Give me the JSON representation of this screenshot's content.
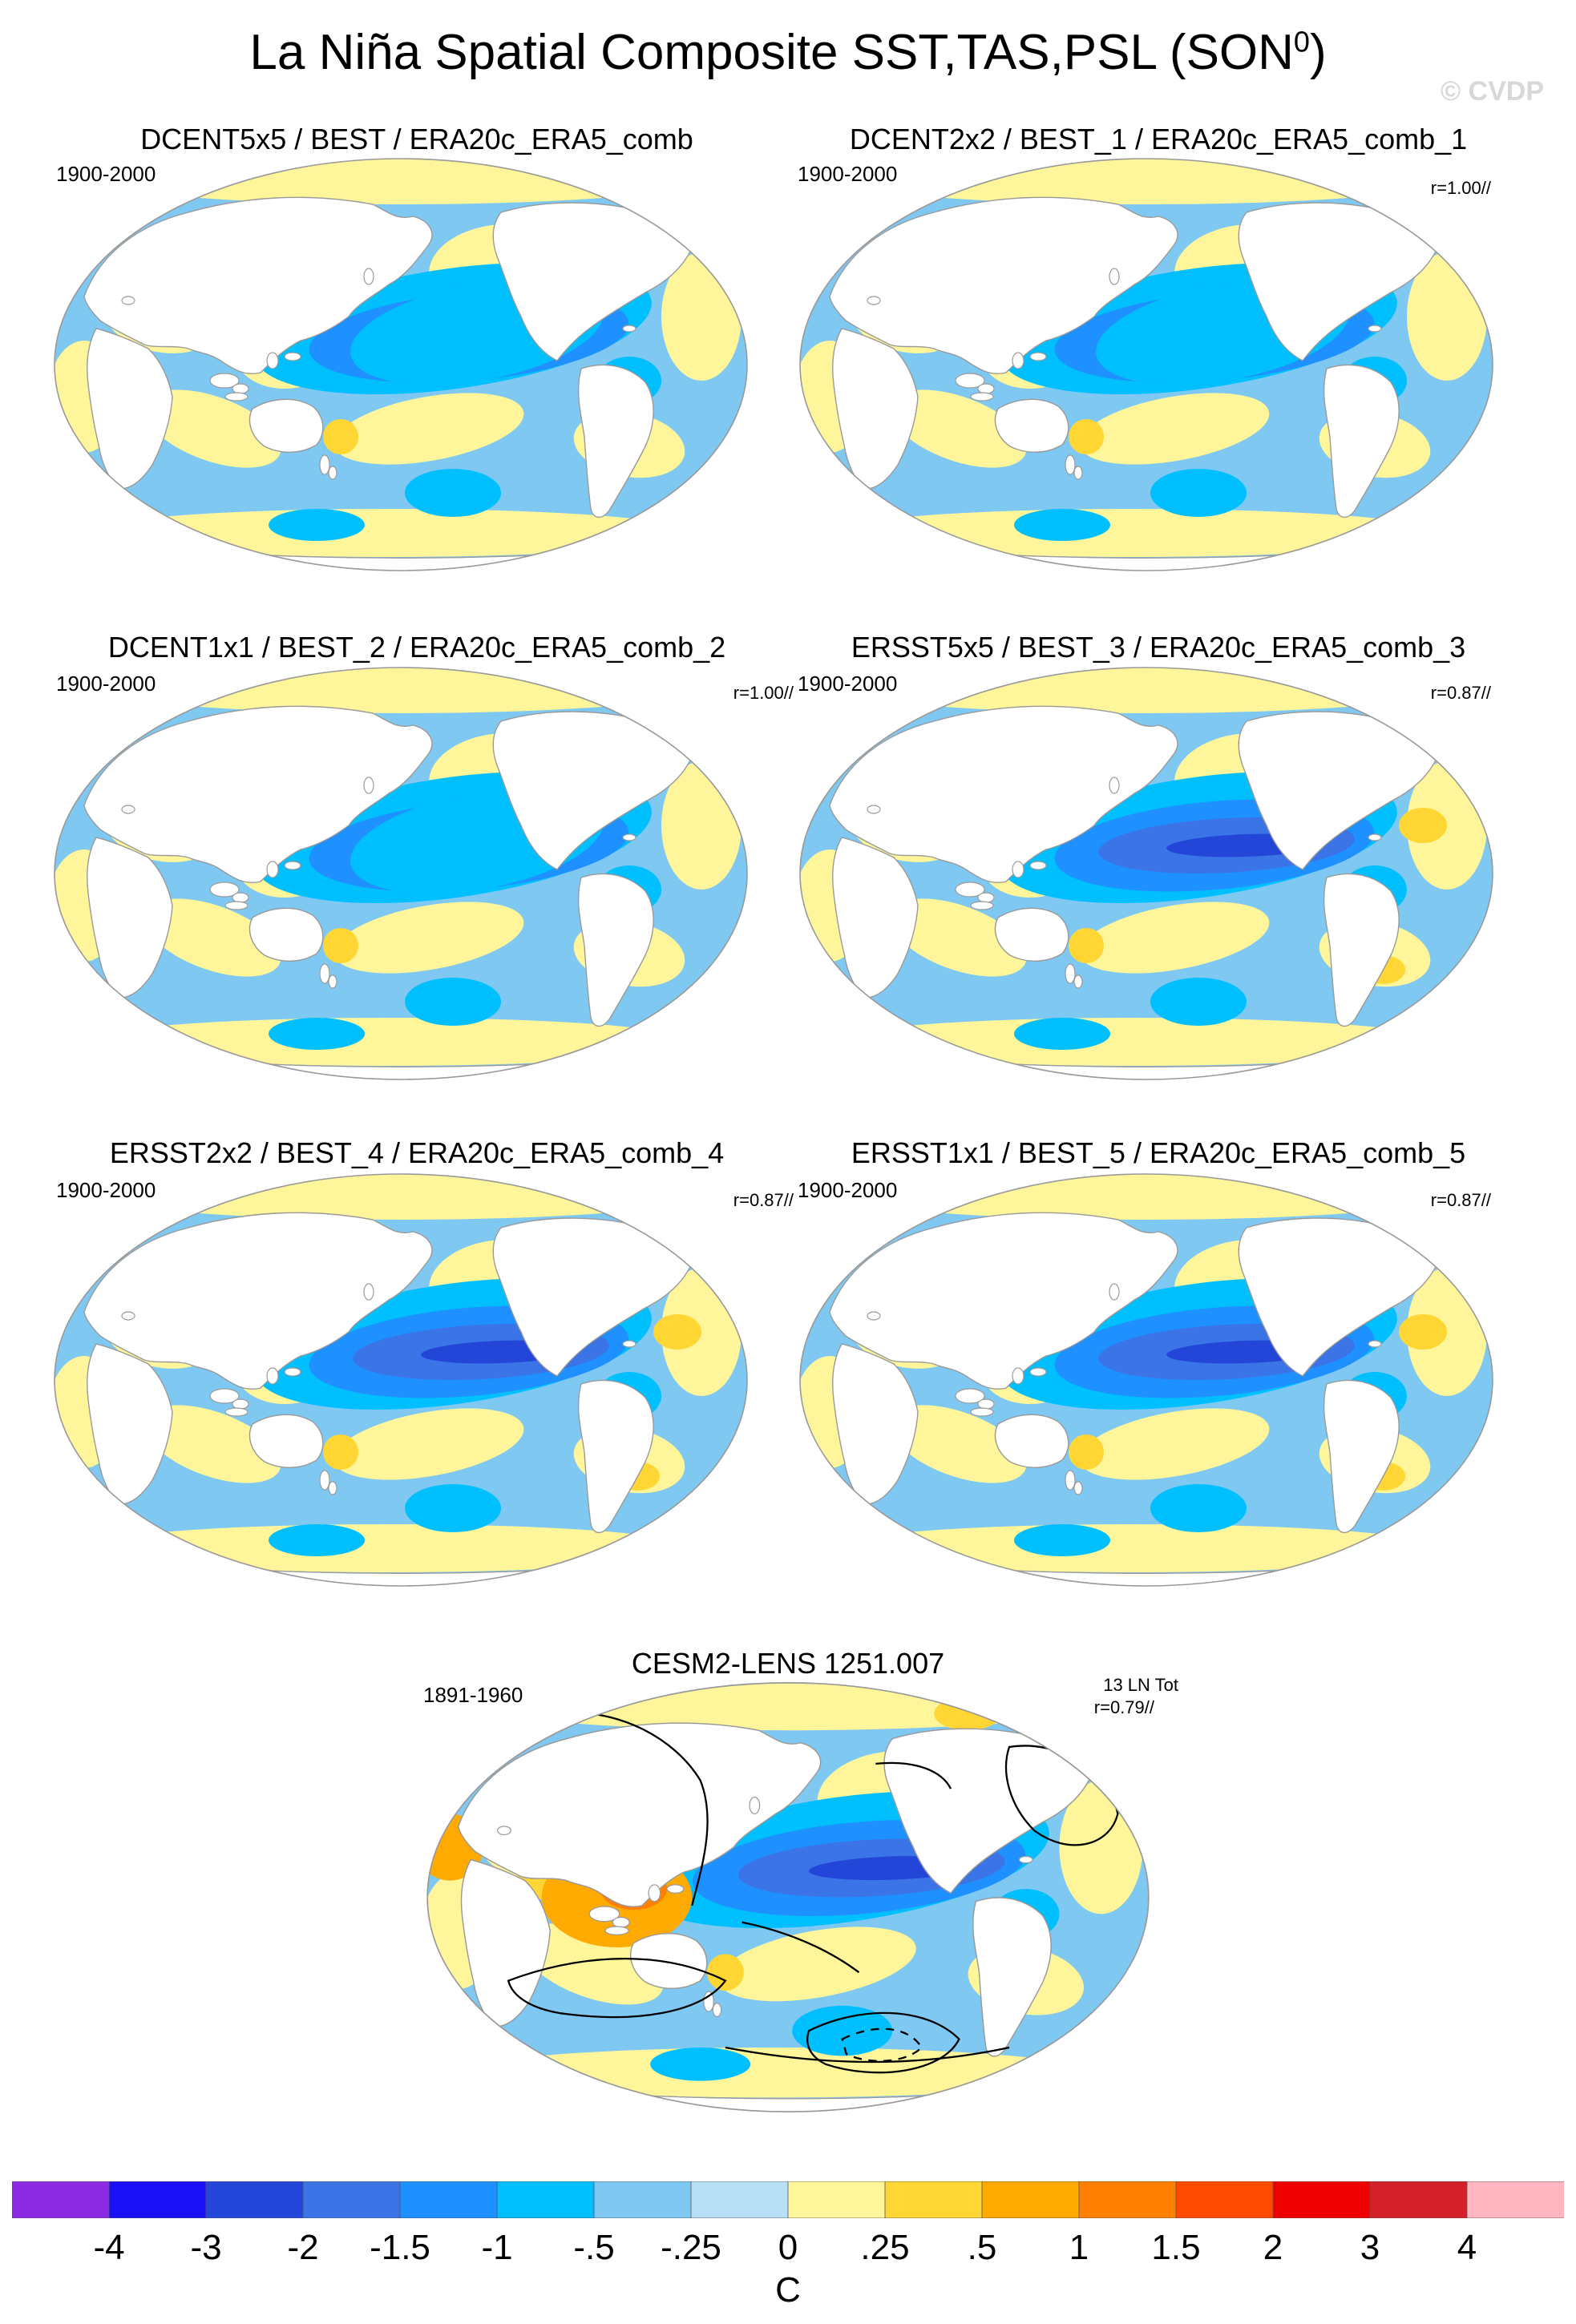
{
  "page": {
    "title": "La Niña Spatial Composite SST,TAS,PSL (SON",
    "title_sup": "0",
    "title_close": ")",
    "watermark": "© CVDP"
  },
  "panels": [
    {
      "title": "DCENT5x5 / BEST / ERA20c_ERA5_comb",
      "period": "1900-2000",
      "r": ""
    },
    {
      "title": "DCENT2x2 / BEST_1 / ERA20c_ERA5_comb_1",
      "period": "1900-2000",
      "r": "r=1.00//"
    },
    {
      "title": "DCENT1x1 / BEST_2 / ERA20c_ERA5_comb_2",
      "period": "1900-2000",
      "r": "r=1.00//"
    },
    {
      "title": "ERSST5x5 / BEST_3 / ERA20c_ERA5_comb_3",
      "period": "1900-2000",
      "r": "r=0.87//"
    },
    {
      "title": "ERSST2x2 / BEST_4 / ERA20c_ERA5_comb_4",
      "period": "1900-2000",
      "r": "r=0.87//"
    },
    {
      "title": "ERSST1x1 / BEST_5 / ERA20c_ERA5_comb_5",
      "period": "1900-2000",
      "r": "r=0.87//"
    },
    {
      "title": "CESM2-LENS 1251.007",
      "period": "1891-1960",
      "r": "r=0.79//",
      "events": "13 LN Tot"
    }
  ],
  "chart_data": {
    "type": "heatmap",
    "title": "La Niña Spatial Composite SST,TAS,PSL (SON0)",
    "colorbar": {
      "unit": "C",
      "levels": [
        "-4",
        "-3",
        "-2",
        "-1.5",
        "-1",
        "-.5",
        "-.25",
        "0",
        ".25",
        ".5",
        "1",
        "1.5",
        "2",
        "3",
        "4"
      ],
      "colors": [
        "#8b2be2",
        "#1a10f5",
        "#2346d9",
        "#3a74e6",
        "#1e90ff",
        "#00bfff",
        "#7ec8f2",
        "#b7dff5",
        "#fff59a",
        "#ffd634",
        "#ffaa00",
        "#ff8000",
        "#ff4a00",
        "#f00000",
        "#d4202a",
        "#ffb6c1"
      ]
    },
    "map_colors": {
      "land": "#ffffff",
      "coast": "#9a9a9a",
      "border": "#999999",
      "contour": "#000000"
    }
  }
}
